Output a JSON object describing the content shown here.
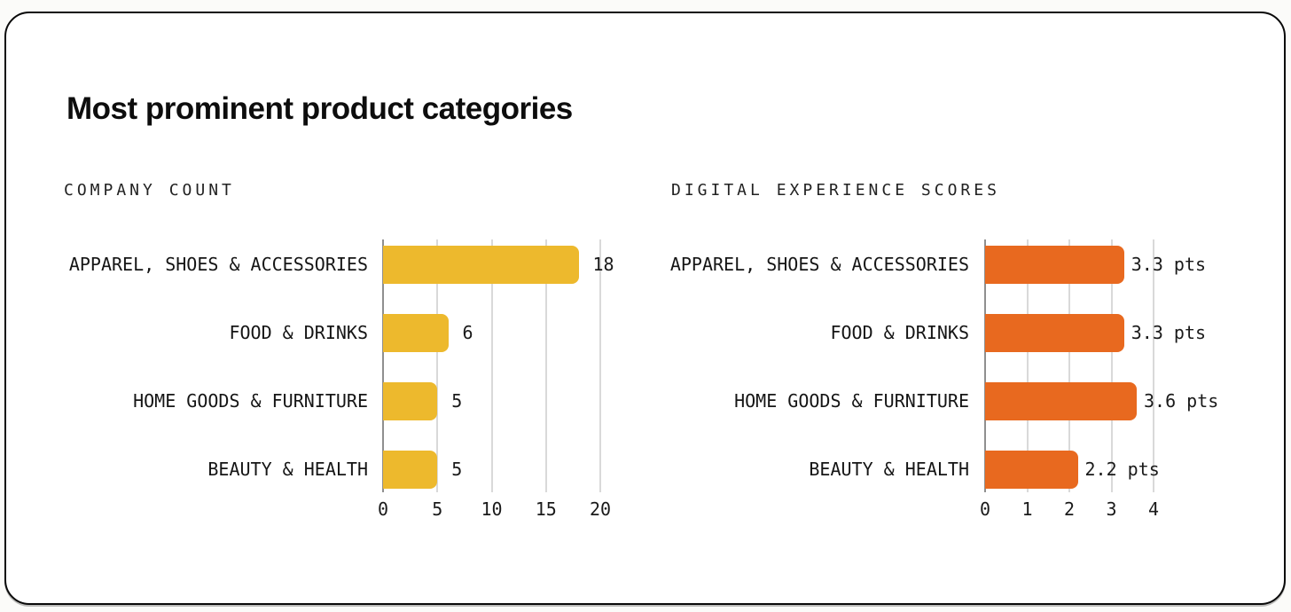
{
  "page": {
    "title": "Most prominent product categories"
  },
  "colors": {
    "card_background": "#ffffff",
    "card_border": "#0a0a0a",
    "left_bar_color": "#edb92d",
    "right_bar_color": "#e8691f",
    "gridline": "#d9d9d9",
    "zero_axis": "#8f8f8f",
    "text": "#151515"
  },
  "chart_data": [
    {
      "type": "bar",
      "orientation": "horizontal",
      "title": "COMPANY COUNT",
      "categories": [
        "APPAREL, SHOES & ACCESSORIES",
        "FOOD & DRINKS",
        "HOME GOODS & FURNITURE",
        "BEAUTY & HEALTH"
      ],
      "values": [
        18,
        6,
        5,
        5
      ],
      "value_labels": [
        "18",
        "6",
        "5",
        "5"
      ],
      "xlim": [
        0,
        20
      ],
      "xticks": [
        0,
        5,
        10,
        15,
        20
      ],
      "bar_color": "#edb92d",
      "grid": true,
      "legend": "none"
    },
    {
      "type": "bar",
      "orientation": "horizontal",
      "title": "DIGITAL EXPERIENCE SCORES",
      "categories": [
        "APPAREL, SHOES & ACCESSORIES",
        "FOOD & DRINKS",
        "HOME GOODS & FURNITURE",
        "BEAUTY & HEALTH"
      ],
      "values": [
        3.3,
        3.3,
        3.6,
        2.2
      ],
      "value_labels": [
        "3.3 pts",
        "3.3 pts",
        "3.6 pts",
        "2.2 pts"
      ],
      "xlim": [
        0,
        4
      ],
      "xticks": [
        0,
        1,
        2,
        3,
        4
      ],
      "bar_color": "#e8691f",
      "grid": true,
      "legend": "none"
    }
  ]
}
